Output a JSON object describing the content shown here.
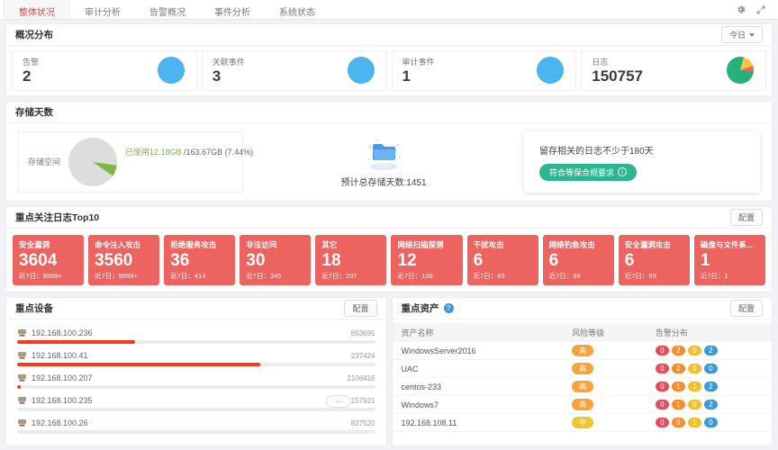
{
  "nav": {
    "tabs": [
      {
        "label": "整体状况",
        "state": "active"
      },
      {
        "label": "审计分析",
        "state": ""
      },
      {
        "label": "告警概况",
        "state": ""
      },
      {
        "label": "事件分析",
        "state": ""
      },
      {
        "label": "系统状态",
        "state": ""
      }
    ]
  },
  "overview": {
    "title": "概况分布",
    "range_selector": "今日",
    "stats": [
      {
        "label": "告警",
        "value": "2",
        "indicator": "circle"
      },
      {
        "label": "关联事件",
        "value": "3",
        "indicator": "circle"
      },
      {
        "label": "审计事件",
        "value": "1",
        "indicator": "circle"
      },
      {
        "label": "日志",
        "value": "150757",
        "indicator": "pie"
      }
    ]
  },
  "storage": {
    "title": "存储天数",
    "space_label": "存储空间",
    "used_text": "已使用12.18GB",
    "total_text": " /163.67GB (7.44%)",
    "used_percent": 7.44,
    "days_text": "预计总存储天数:1451",
    "compliance_text": "留存相关的日志不少于180天",
    "compliance_button": "符合等保合规要求"
  },
  "top_logs": {
    "title": "重点关注日志Top10",
    "config_button": "配置",
    "recent_label": "近7日：",
    "cards": [
      {
        "title": "安全漏洞",
        "value": "3604",
        "recent": "9999+"
      },
      {
        "title": "命令注入攻击",
        "value": "3560",
        "recent": "9999+"
      },
      {
        "title": "拒绝服务攻击",
        "value": "36",
        "recent": "414"
      },
      {
        "title": "非法访问",
        "value": "30",
        "recent": "345"
      },
      {
        "title": "其它",
        "value": "18",
        "recent": "207"
      },
      {
        "title": "网络扫描探测",
        "value": "12",
        "recent": "138"
      },
      {
        "title": "干扰攻击",
        "value": "6",
        "recent": "69"
      },
      {
        "title": "网络钓鱼攻击",
        "value": "6",
        "recent": "69"
      },
      {
        "title": "安全漏洞攻击",
        "value": "6",
        "recent": "69"
      },
      {
        "title": "磁盘与文件系...",
        "value": "1",
        "recent": "1"
      }
    ]
  },
  "devices": {
    "title": "重点设备",
    "config_button": "配置",
    "rows": [
      {
        "ip": "192.168.100.236",
        "value": "853695",
        "bar_pct": 33
      },
      {
        "ip": "192.168.100.41",
        "value": "237424",
        "bar_pct": 68
      },
      {
        "ip": "192.168.100.207",
        "value": "2106416",
        "bar_pct": 1
      },
      {
        "ip": "192.168.100.235",
        "value": "2157921",
        "bar_pct": 0
      },
      {
        "ip": "192.168.100.26",
        "value": "837520",
        "bar_pct": 0
      }
    ]
  },
  "assets": {
    "title": "重点资产",
    "config_button": "配置",
    "columns": [
      "资产名称",
      "风险等级",
      "告警分布"
    ],
    "rows": [
      {
        "name": "WindowsServer2016",
        "risk": "高",
        "risk_level": "high",
        "a1": "0",
        "a2": "2",
        "a3": "0",
        "a4": "2"
      },
      {
        "name": "UAC",
        "risk": "高",
        "risk_level": "high",
        "a1": "0",
        "a2": "2",
        "a3": "0",
        "a4": "0"
      },
      {
        "name": "centos-233",
        "risk": "高",
        "risk_level": "high",
        "a1": "0",
        "a2": "1",
        "a3": "1",
        "a4": "2"
      },
      {
        "name": "Windows7",
        "risk": "高",
        "risk_level": "high",
        "a1": "0",
        "a2": "1",
        "a3": "0",
        "a4": "2"
      },
      {
        "name": "192.168.108.11",
        "risk": "中",
        "risk_level": "mid",
        "a1": "0",
        "a2": "0",
        "a3": "1",
        "a4": "0"
      }
    ]
  },
  "icons": {
    "help": "?",
    "info": "i",
    "more": "..."
  },
  "colors": {
    "tab_active": "#e8453c",
    "stat_circle_blue": "#4cb4f0",
    "log_pie_green": "#27b07a",
    "log_pie_yellow": "#f5c64a",
    "log_pie_red": "#e66a5e",
    "storage_used_green": "#7cb93e",
    "compliance_green": "#2cb591",
    "log_card_red": "#ec6360",
    "device_bar_red": "#fb3a1a",
    "risk_high_orange": "#f9a43b",
    "risk_mid_yellow": "#f0c62e",
    "alert_red": "#e84c5c",
    "alert_orange": "#f78d32",
    "alert_yellow": "#f2c02e",
    "alert_blue": "#3a9bdc"
  }
}
